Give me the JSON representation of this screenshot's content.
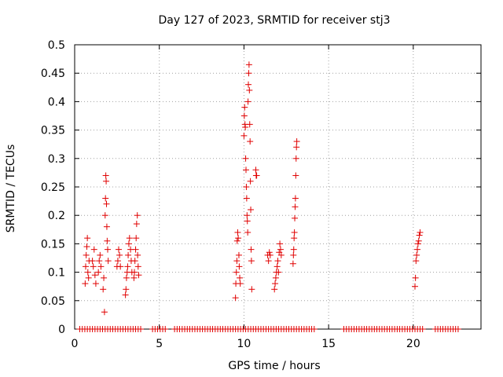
{
  "chart_data": {
    "type": "scatter",
    "title": "Day 127 of 2023, SRMTID for receiver stj3",
    "xlabel": "GPS time / hours",
    "ylabel": "SRMTID / TECUs",
    "xlim": [
      0,
      24
    ],
    "ylim": [
      0,
      0.5
    ],
    "xticks": [
      "0",
      "5",
      "10",
      "15",
      "20"
    ],
    "yticks": [
      "0",
      "0.05",
      "0.1",
      "0.15",
      "0.2",
      "0.25",
      "0.3",
      "0.35",
      "0.4",
      "0.45",
      "0.5"
    ],
    "grid": true,
    "marker": "plus",
    "color": "#e00000",
    "points": [
      [
        0.62,
        0.08
      ],
      [
        0.65,
        0.11
      ],
      [
        0.68,
        0.13
      ],
      [
        0.72,
        0.145
      ],
      [
        0.75,
        0.16
      ],
      [
        0.78,
        0.1
      ],
      [
        0.82,
        0.09
      ],
      [
        0.85,
        0.12
      ],
      [
        1.05,
        0.12
      ],
      [
        1.1,
        0.11
      ],
      [
        1.15,
        0.14
      ],
      [
        1.2,
        0.095
      ],
      [
        1.25,
        0.08
      ],
      [
        1.4,
        0.1
      ],
      [
        1.45,
        0.12
      ],
      [
        1.5,
        0.13
      ],
      [
        1.55,
        0.11
      ],
      [
        1.68,
        0.07
      ],
      [
        1.72,
        0.09
      ],
      [
        1.76,
        0.03
      ],
      [
        1.8,
        0.2
      ],
      [
        1.82,
        0.23
      ],
      [
        1.84,
        0.27
      ],
      [
        1.86,
        0.26
      ],
      [
        1.88,
        0.22
      ],
      [
        1.9,
        0.18
      ],
      [
        1.92,
        0.155
      ],
      [
        1.95,
        0.14
      ],
      [
        1.98,
        0.12
      ],
      [
        2.5,
        0.11
      ],
      [
        2.55,
        0.12
      ],
      [
        2.6,
        0.14
      ],
      [
        2.65,
        0.13
      ],
      [
        2.7,
        0.11
      ],
      [
        3.0,
        0.06
      ],
      [
        3.03,
        0.07
      ],
      [
        3.06,
        0.09
      ],
      [
        3.1,
        0.1
      ],
      [
        3.13,
        0.11
      ],
      [
        3.16,
        0.13
      ],
      [
        3.2,
        0.15
      ],
      [
        3.24,
        0.16
      ],
      [
        3.3,
        0.14
      ],
      [
        3.34,
        0.12
      ],
      [
        3.38,
        0.1
      ],
      [
        3.5,
        0.09
      ],
      [
        3.53,
        0.1
      ],
      [
        3.56,
        0.12
      ],
      [
        3.6,
        0.14
      ],
      [
        3.63,
        0.16
      ],
      [
        3.66,
        0.185
      ],
      [
        3.7,
        0.2
      ],
      [
        3.72,
        0.13
      ],
      [
        3.75,
        0.11
      ],
      [
        3.78,
        0.095
      ],
      [
        9.5,
        0.055
      ],
      [
        9.52,
        0.08
      ],
      [
        9.55,
        0.1
      ],
      [
        9.58,
        0.12
      ],
      [
        9.6,
        0.155
      ],
      [
        9.63,
        0.17
      ],
      [
        9.66,
        0.16
      ],
      [
        9.7,
        0.13
      ],
      [
        9.72,
        0.11
      ],
      [
        9.75,
        0.09
      ],
      [
        9.78,
        0.08
      ],
      [
        10.0,
        0.34
      ],
      [
        10.02,
        0.375
      ],
      [
        10.04,
        0.39
      ],
      [
        10.06,
        0.36
      ],
      [
        10.08,
        0.355
      ],
      [
        10.1,
        0.3
      ],
      [
        10.12,
        0.28
      ],
      [
        10.14,
        0.25
      ],
      [
        10.16,
        0.23
      ],
      [
        10.18,
        0.2
      ],
      [
        10.2,
        0.19
      ],
      [
        10.22,
        0.17
      ],
      [
        10.24,
        0.4
      ],
      [
        10.26,
        0.43
      ],
      [
        10.28,
        0.45
      ],
      [
        10.3,
        0.465
      ],
      [
        10.32,
        0.42
      ],
      [
        10.34,
        0.36
      ],
      [
        10.36,
        0.33
      ],
      [
        10.38,
        0.26
      ],
      [
        10.4,
        0.21
      ],
      [
        10.42,
        0.14
      ],
      [
        10.44,
        0.12
      ],
      [
        10.46,
        0.07
      ],
      [
        10.7,
        0.28
      ],
      [
        10.72,
        0.27
      ],
      [
        10.75,
        0.27
      ],
      [
        11.4,
        0.13
      ],
      [
        11.45,
        0.12
      ],
      [
        11.5,
        0.135
      ],
      [
        11.55,
        0.13
      ],
      [
        11.8,
        0.07
      ],
      [
        11.84,
        0.08
      ],
      [
        11.88,
        0.09
      ],
      [
        11.92,
        0.1
      ],
      [
        11.96,
        0.11
      ],
      [
        12.0,
        0.12
      ],
      [
        12.04,
        0.1
      ],
      [
        12.08,
        0.135
      ],
      [
        12.12,
        0.15
      ],
      [
        12.16,
        0.14
      ],
      [
        12.2,
        0.13
      ],
      [
        12.9,
        0.115
      ],
      [
        12.92,
        0.13
      ],
      [
        12.94,
        0.14
      ],
      [
        12.96,
        0.16
      ],
      [
        12.98,
        0.17
      ],
      [
        13.0,
        0.195
      ],
      [
        13.02,
        0.215
      ],
      [
        13.04,
        0.23
      ],
      [
        13.06,
        0.27
      ],
      [
        13.08,
        0.3
      ],
      [
        13.1,
        0.32
      ],
      [
        13.12,
        0.33
      ],
      [
        20.1,
        0.075
      ],
      [
        20.13,
        0.09
      ],
      [
        20.16,
        0.12
      ],
      [
        20.2,
        0.13
      ],
      [
        20.24,
        0.14
      ],
      [
        20.28,
        0.15
      ],
      [
        20.32,
        0.155
      ],
      [
        20.36,
        0.165
      ],
      [
        20.4,
        0.17
      ]
    ],
    "zero_points_x": [
      0.3,
      0.45,
      0.6,
      0.75,
      0.9,
      1.05,
      1.2,
      1.35,
      1.5,
      1.65,
      1.8,
      1.95,
      2.1,
      2.25,
      2.4,
      2.55,
      2.7,
      2.85,
      3.0,
      3.15,
      3.3,
      3.45,
      3.6,
      3.75,
      3.9,
      4.6,
      4.75,
      4.9,
      5.05,
      5.2,
      5.35,
      5.9,
      6.05,
      6.2,
      6.35,
      6.5,
      6.65,
      6.8,
      6.95,
      7.1,
      7.25,
      7.4,
      7.55,
      7.7,
      7.85,
      8.0,
      8.15,
      8.3,
      8.45,
      8.6,
      8.75,
      8.9,
      9.05,
      9.2,
      9.35,
      9.5,
      9.65,
      9.8,
      9.95,
      10.1,
      10.25,
      10.4,
      10.55,
      10.7,
      10.85,
      11.0,
      11.15,
      11.3,
      11.45,
      11.6,
      11.75,
      11.9,
      12.05,
      12.2,
      12.35,
      12.5,
      12.65,
      12.8,
      12.95,
      13.1,
      13.25,
      13.4,
      13.55,
      13.7,
      13.85,
      14.0,
      14.15,
      15.9,
      16.05,
      16.2,
      16.35,
      16.5,
      16.65,
      16.8,
      16.95,
      17.1,
      17.25,
      17.4,
      17.55,
      17.7,
      17.85,
      18.0,
      18.15,
      18.3,
      18.45,
      18.6,
      18.75,
      18.9,
      19.05,
      19.2,
      19.35,
      19.5,
      19.65,
      19.8,
      19.95,
      20.1,
      20.25,
      20.4,
      20.55,
      21.3,
      21.45,
      21.6,
      21.75,
      21.9,
      22.05,
      22.2,
      22.35,
      22.5,
      22.65
    ]
  }
}
